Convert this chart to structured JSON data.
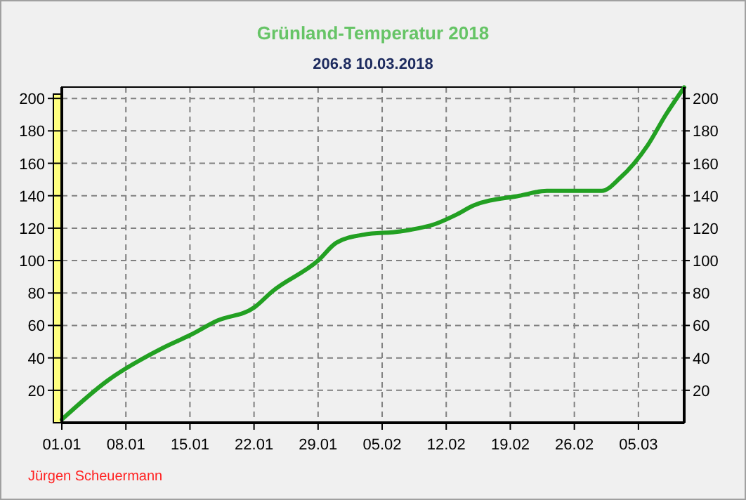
{
  "chart_data": {
    "type": "line",
    "title": "Grünland-Temperatur  2018",
    "subtitle": "206.8  10.03.2018",
    "x": [
      "2018-01-01",
      "2018-01-06",
      "2018-01-12",
      "2018-01-15",
      "2018-01-18",
      "2018-01-22",
      "2018-01-24",
      "2018-01-29",
      "2018-01-31",
      "2018-02-03",
      "2018-02-07",
      "2018-02-11",
      "2018-02-13",
      "2018-02-15",
      "2018-02-20",
      "2018-02-23",
      "2018-03-01",
      "2018-03-03",
      "2018-03-06",
      "2018-03-08",
      "2018-03-10"
    ],
    "series": [
      {
        "color": "#22a022",
        "values": [
          2,
          26,
          46,
          54,
          63,
          71,
          81,
          100,
          111,
          116,
          118,
          123,
          128,
          134,
          140,
          143,
          143,
          151,
          171,
          190,
          206.8
        ]
      }
    ],
    "xlim": [
      "2018-01-01",
      "2018-03-10"
    ],
    "xticks": [
      {
        "value": "2018-01-01",
        "label": "01.01"
      },
      {
        "value": "2018-01-08",
        "label": "08.01"
      },
      {
        "value": "2018-01-15",
        "label": "15.01"
      },
      {
        "value": "2018-01-22",
        "label": "22.01"
      },
      {
        "value": "2018-01-29",
        "label": "29.01"
      },
      {
        "value": "2018-02-05",
        "label": "05.02"
      },
      {
        "value": "2018-02-12",
        "label": "12.02"
      },
      {
        "value": "2018-02-19",
        "label": "19.02"
      },
      {
        "value": "2018-02-26",
        "label": "26.02"
      },
      {
        "value": "2018-03-05",
        "label": "05.03"
      }
    ],
    "ylim": [
      0,
      207
    ],
    "yticks": [
      20,
      40,
      60,
      80,
      100,
      120,
      140,
      160,
      180,
      200
    ],
    "y2lim": [
      0,
      207
    ],
    "y2ticks": [
      20,
      40,
      60,
      80,
      100,
      120,
      140,
      160,
      180,
      200
    ],
    "grid": true,
    "line_style": "solid",
    "marker": "none",
    "annotations": [
      "Jürgen Scheuermann"
    ]
  }
}
